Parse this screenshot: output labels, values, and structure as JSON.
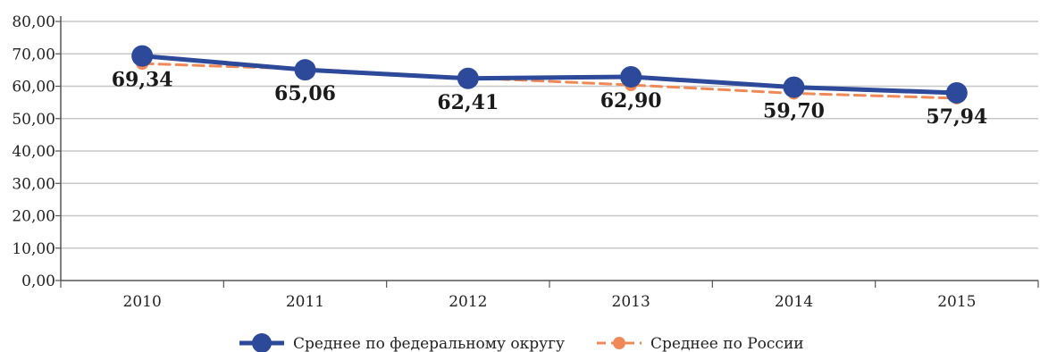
{
  "chart_data": {
    "type": "line",
    "categories": [
      "2010",
      "2011",
      "2012",
      "2013",
      "2014",
      "2015"
    ],
    "y_tick_labels": [
      "0,00",
      "10,00",
      "20,00",
      "30,00",
      "40,00",
      "50,00",
      "60,00",
      "70,00",
      "80,00"
    ],
    "ylim": [
      0,
      80
    ],
    "grid": true,
    "legend_placement": "bottom",
    "series": [
      {
        "name": "Среднее по федеральному округу",
        "values": [
          69.34,
          65.06,
          62.41,
          62.9,
          59.7,
          57.94
        ],
        "labels": [
          "69,34",
          "65,06",
          "62,41",
          "62,90",
          "59,70",
          "57,94"
        ],
        "color": "#2d4a9a",
        "style": "solid",
        "marker": "circle"
      },
      {
        "name": "Среднее по России",
        "values": [
          67.0,
          65.3,
          62.6,
          60.4,
          57.8,
          56.3
        ],
        "color": "#ef8a58",
        "style": "dashed",
        "marker": "circle"
      }
    ]
  }
}
